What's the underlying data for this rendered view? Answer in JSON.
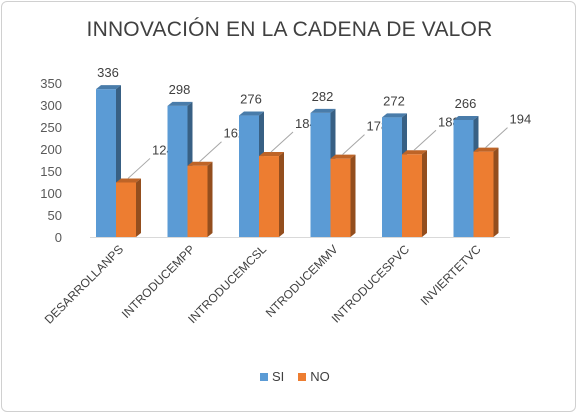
{
  "chart_data": {
    "type": "bar",
    "title": "INNOVACIÓN  EN LA CADENA DE VALOR",
    "categories": [
      "DESARROLLANPS",
      "INTRODUCEMPP",
      "INTRODUCEMCSL",
      "NTRODUCEMMV",
      "INTRODUCESPVC",
      "INVIERTETVC"
    ],
    "series": [
      {
        "name": "SI",
        "values": [
          336,
          298,
          276,
          282,
          272,
          266
        ],
        "color": "#5B9BD5"
      },
      {
        "name": "NO",
        "values": [
          124,
          162,
          184,
          178,
          188,
          194
        ],
        "color": "#ED7D31"
      }
    ],
    "ylim": [
      0,
      350
    ],
    "yticks": [
      0,
      50,
      100,
      150,
      200,
      250,
      300,
      350
    ],
    "xlabel": "",
    "ylabel": "",
    "legend_position": "bottom",
    "grid": false,
    "style": "3d-clustered-column"
  },
  "legend": {
    "si": "SI",
    "no": "NO"
  }
}
